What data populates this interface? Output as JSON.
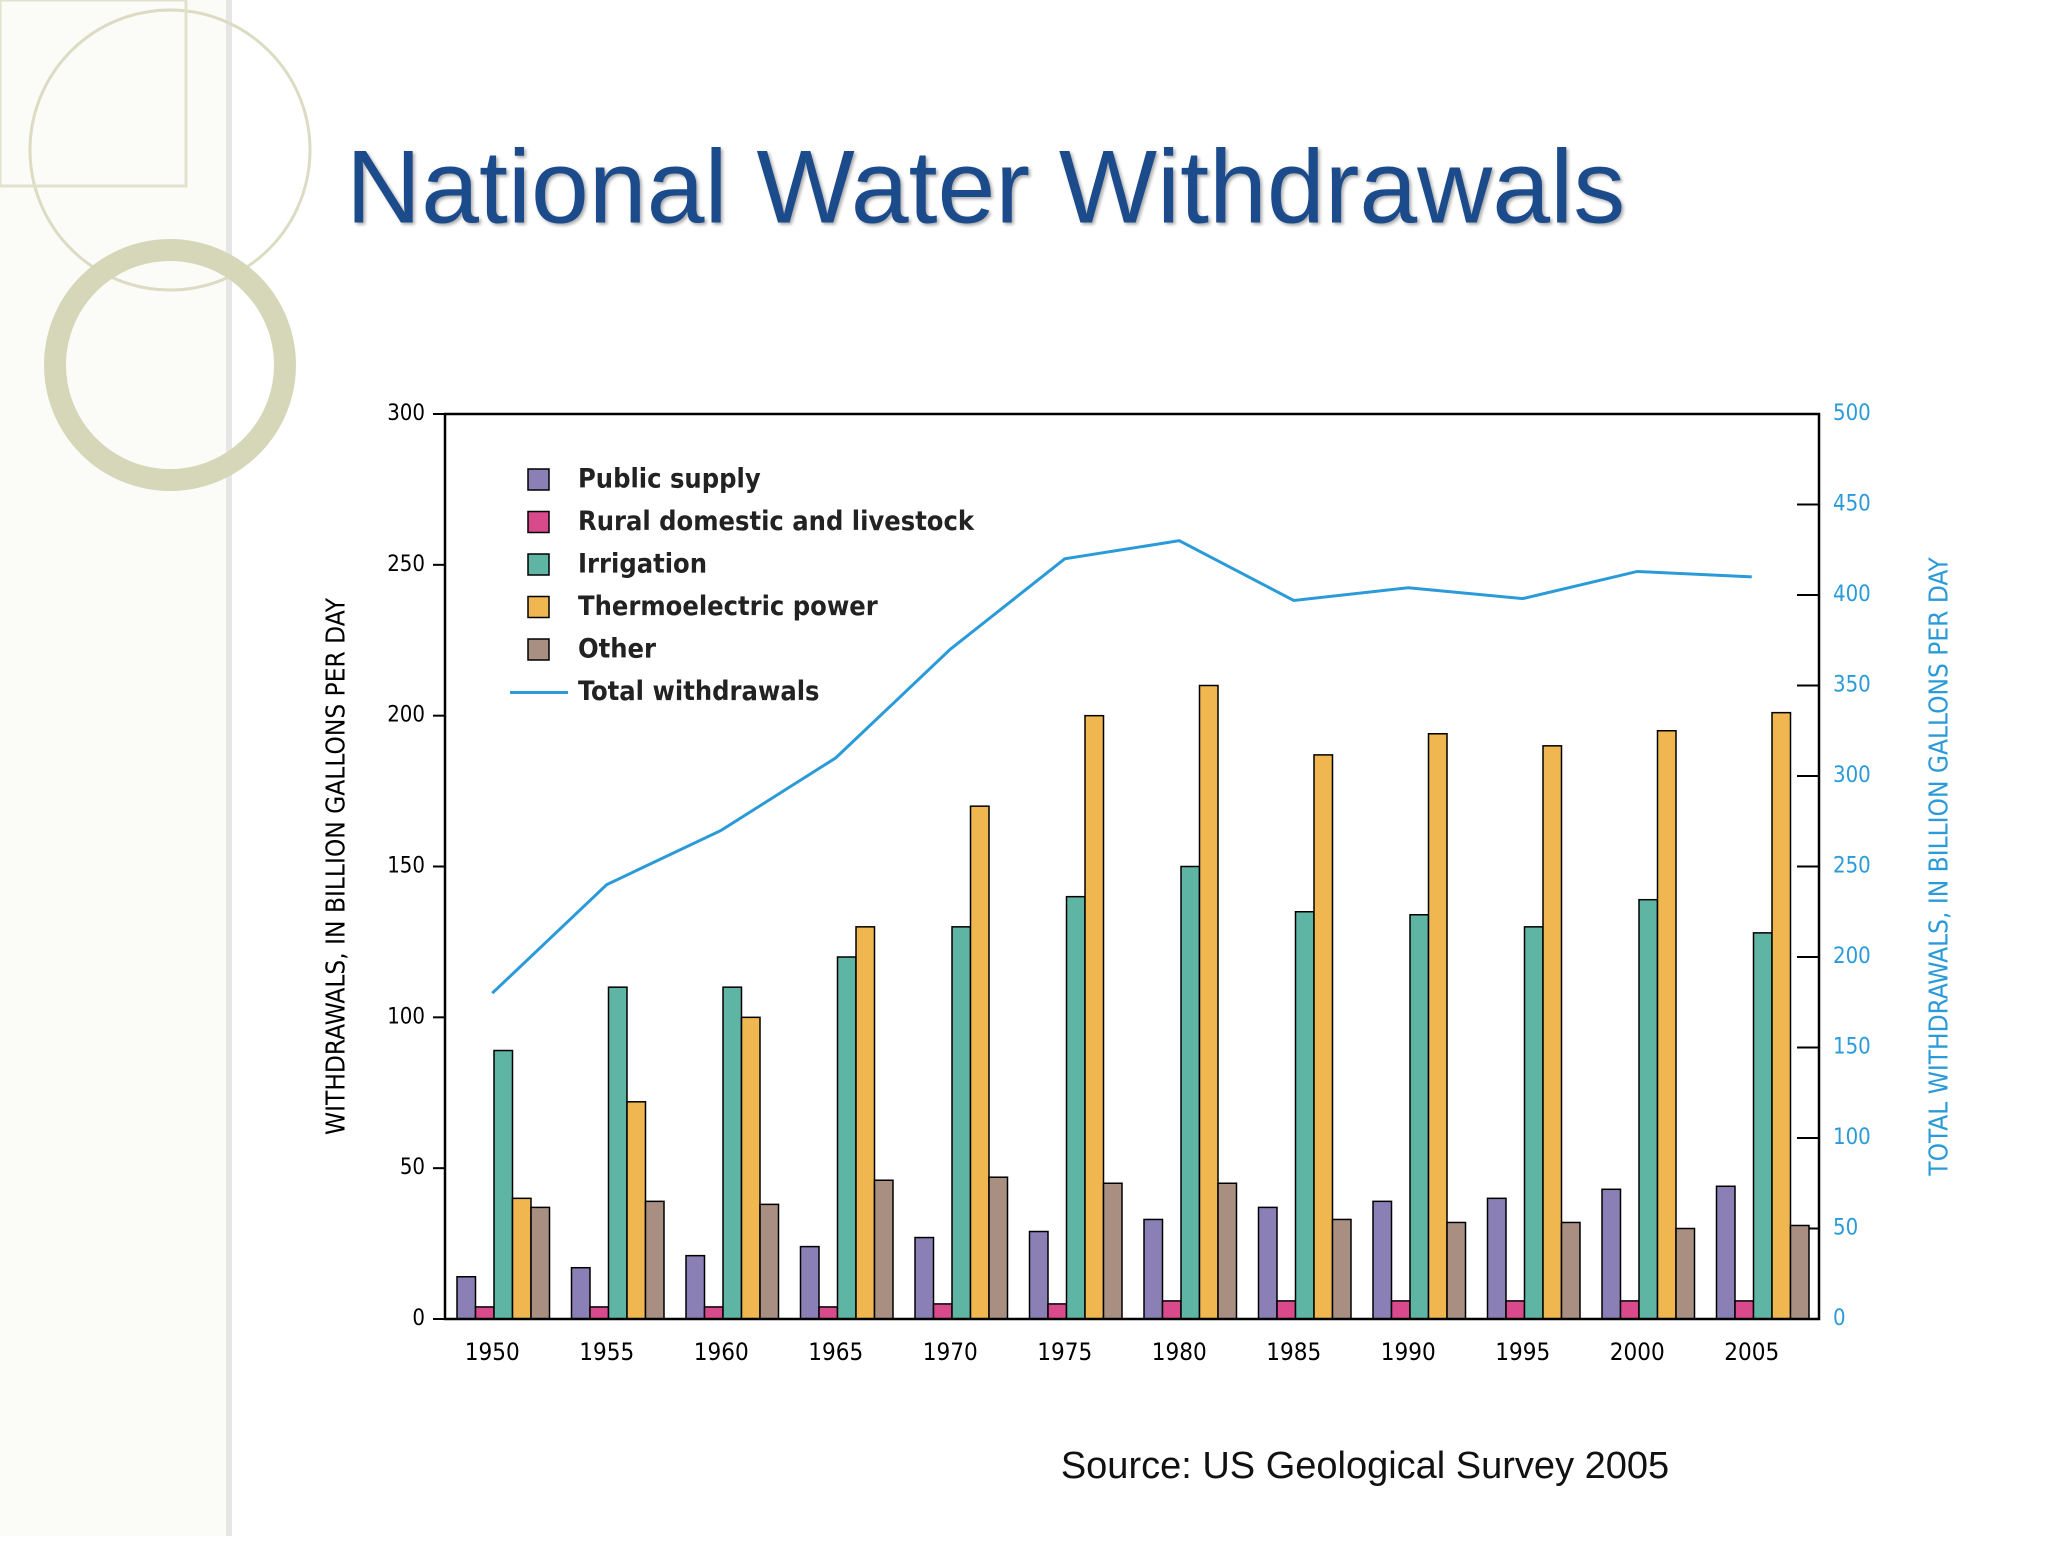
{
  "title": "National Water Withdrawals",
  "source": "Source:  US Geological Survey 2005",
  "chart_data": {
    "type": "bar",
    "y_label": "WITHDRAWALS, IN BILLION GALLONS PER DAY",
    "y2_label": "TOTAL WITHDRAWALS, IN BILLION GALLONS PER DAY",
    "categories": [
      "1950",
      "1955",
      "1960",
      "1965",
      "1970",
      "1975",
      "1980",
      "1985",
      "1990",
      "1995",
      "2000",
      "2005"
    ],
    "series": [
      {
        "name": "Public supply",
        "color": "#8a80b6",
        "values": [
          14,
          17,
          21,
          24,
          27,
          29,
          33,
          37,
          39,
          40,
          43,
          44
        ]
      },
      {
        "name": "Rural domestic and livestock",
        "color": "#d94a8c",
        "values": [
          4,
          4,
          4,
          4,
          5,
          5,
          6,
          6,
          6,
          6,
          6,
          6
        ]
      },
      {
        "name": "Irrigation",
        "color": "#5fb5a3",
        "values": [
          89,
          110,
          110,
          120,
          130,
          140,
          150,
          135,
          134,
          130,
          139,
          128
        ]
      },
      {
        "name": "Thermoelectric power",
        "color": "#f0b650",
        "values": [
          40,
          72,
          100,
          130,
          170,
          200,
          210,
          187,
          194,
          190,
          195,
          201
        ]
      },
      {
        "name": "Other",
        "color": "#a98f82",
        "values": [
          37,
          39,
          38,
          46,
          47,
          45,
          45,
          33,
          32,
          32,
          30,
          31
        ]
      },
      {
        "name": "Total withdrawals",
        "color": "#2a9bd8",
        "type": "line",
        "axis": "y2",
        "values": [
          180,
          240,
          270,
          310,
          370,
          420,
          430,
          397,
          404,
          398,
          413,
          410
        ]
      }
    ],
    "ylim": [
      0,
      300
    ],
    "yticks": [
      0,
      50,
      100,
      150,
      200,
      250,
      300
    ],
    "y2lim": [
      0,
      500
    ],
    "y2ticks": [
      0,
      50,
      100,
      150,
      200,
      250,
      300,
      350,
      400,
      450,
      500
    ],
    "y2_color": "#2a9bd8",
    "legend": "upper left"
  }
}
